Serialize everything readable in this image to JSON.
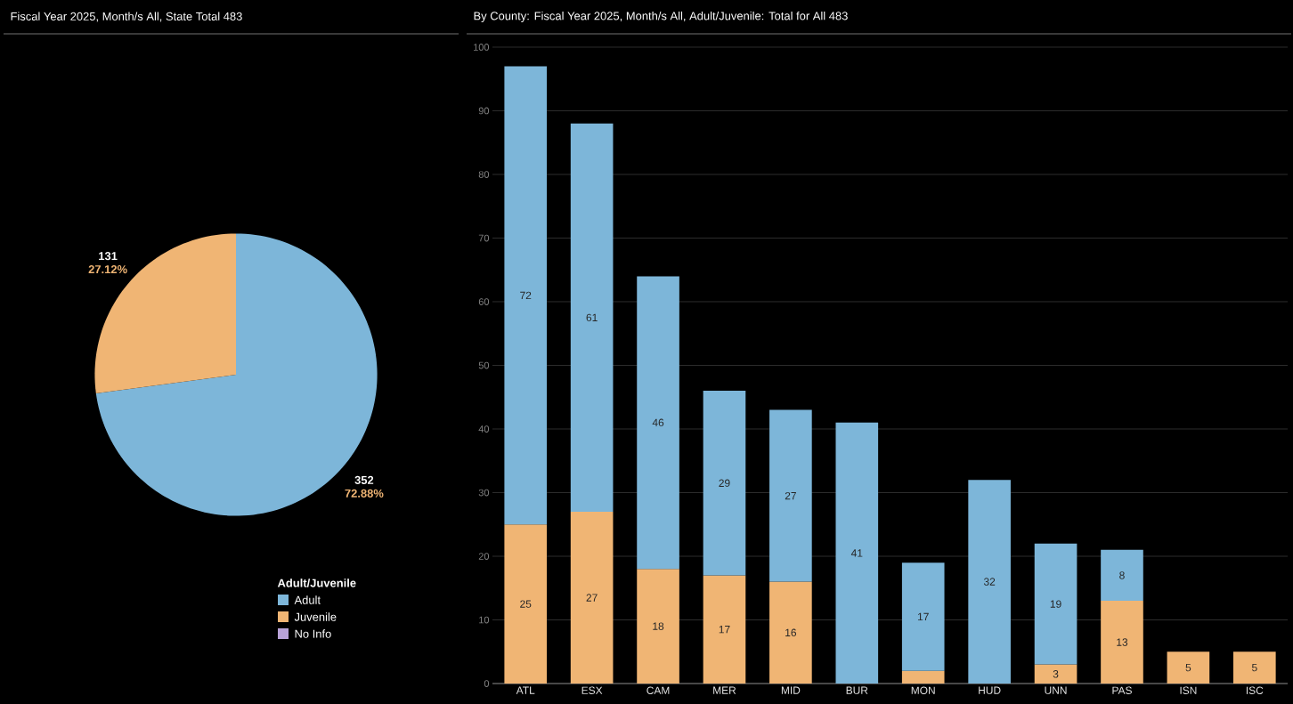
{
  "chart_data": [
    {
      "type": "pie",
      "title": "Fiscal Year 2025, Month/s All, State Total 483",
      "categories": [
        "Adult",
        "Juvenile",
        "No Info"
      ],
      "values": [
        352,
        131,
        0
      ],
      "colors": [
        "#7db6d9",
        "#f0b574",
        "#b9a3d8"
      ],
      "value_labels": [
        "352",
        "131",
        null
      ],
      "annotations": [
        "72.88%",
        "27.12%"
      ],
      "legend": "bottom right",
      "legend_title": "Adult/Juvenile"
    },
    {
      "type": "bar",
      "title": "By County: Fiscal Year 2025, Month/s All, Adult/Juvenile: Total for All 483",
      "stacked": true,
      "categories": [
        "ATL",
        "ESX",
        "CAM",
        "MER",
        "MID",
        "BUR",
        "MON",
        "HUD",
        "UNN",
        "PAS",
        "ISN",
        "ISC"
      ],
      "series": [
        {
          "color": "#f0b574",
          "values": [
            25,
            27,
            18,
            17,
            16,
            null,
            2,
            null,
            3,
            13,
            5,
            5
          ],
          "value_labels": [
            "25",
            "27",
            "18",
            "17",
            "16",
            null,
            null,
            null,
            "3",
            "13",
            "5",
            "5"
          ]
        },
        {
          "color": "#7db6d9",
          "values": [
            72,
            61,
            46,
            29,
            27,
            41,
            17,
            32,
            19,
            8,
            null,
            null
          ],
          "value_labels": [
            "72",
            "61",
            "46",
            "29",
            "27",
            "41",
            "17",
            "32",
            "19",
            "8",
            null,
            null
          ]
        }
      ],
      "ylim": [
        0,
        100
      ],
      "yticks": [
        0,
        10,
        20,
        30,
        40,
        50,
        60,
        70,
        80,
        90,
        100
      ],
      "grid": "y"
    }
  ]
}
